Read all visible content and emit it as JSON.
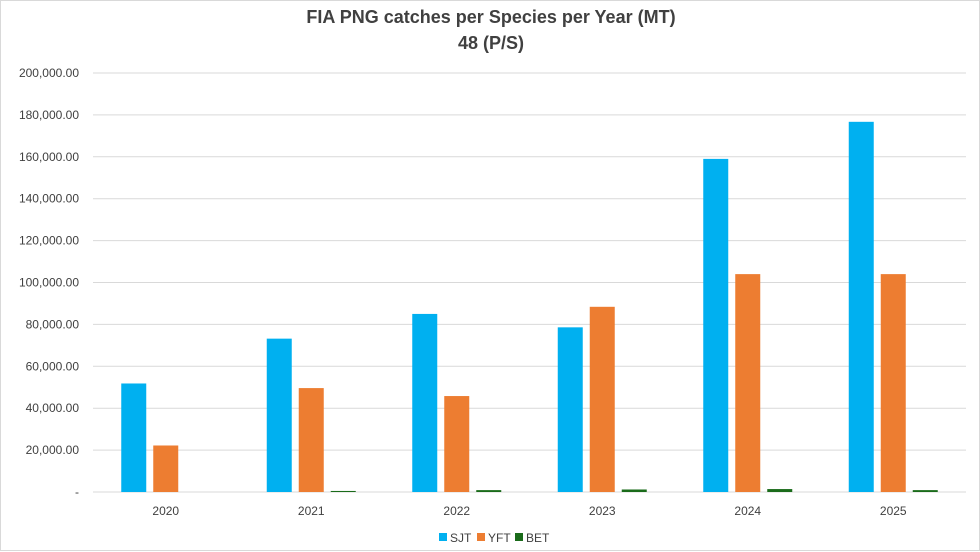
{
  "chart_data": {
    "type": "bar",
    "title": "FIA PNG catches per Species per Year (MT)",
    "subtitle": "48 (P/S)",
    "categories": [
      "2020",
      "2021",
      "2022",
      "2023",
      "2024",
      "2025"
    ],
    "series": [
      {
        "name": "SJT",
        "color": "#00B0F0",
        "values": [
          51800,
          73200,
          85000,
          78600,
          159000,
          176700
        ]
      },
      {
        "name": "YFT",
        "color": "#ED7D31",
        "values": [
          22200,
          49600,
          45800,
          88400,
          104000,
          104000
        ]
      },
      {
        "name": "BET",
        "color": "#1A6B1A",
        "values": [
          0,
          500,
          900,
          1200,
          1400,
          900
        ]
      }
    ],
    "yticks": [
      "-",
      "20,000.00",
      "40,000.00",
      "60,000.00",
      "80,000.00",
      "100,000.00",
      "120,000.00",
      "140,000.00",
      "160,000.00",
      "180,000.00",
      "200,000.00"
    ],
    "ylim": [
      0,
      200000
    ],
    "grid": true,
    "legend_position": "bottom"
  }
}
